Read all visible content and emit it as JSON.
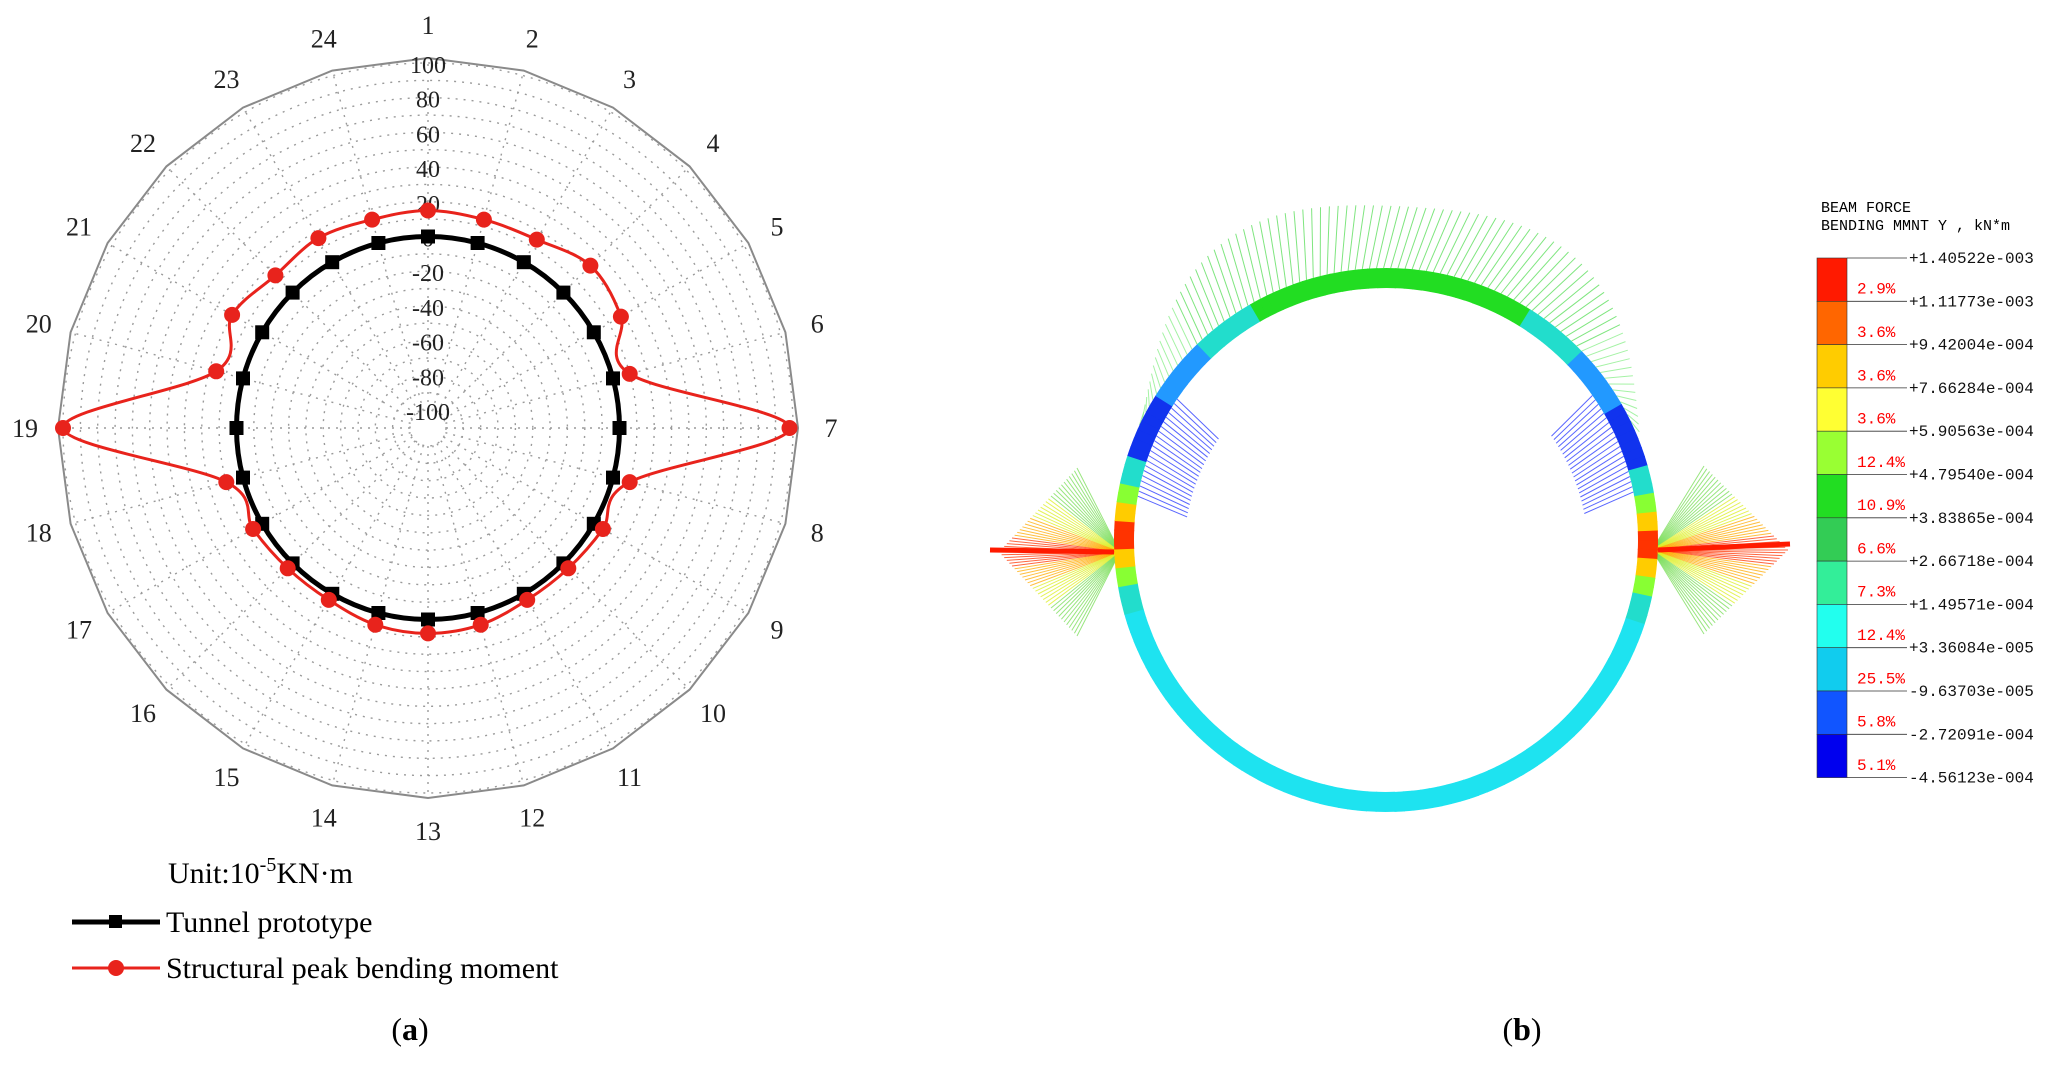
{
  "panel_a": {
    "label": "a",
    "unit_text": "Unit:10",
    "unit_exponent": "-5",
    "unit_suffix": "KN·m",
    "legend": [
      {
        "label": "Tunnel prototype",
        "color": "#000000",
        "marker": "square"
      },
      {
        "label": "Structural peak bending moment",
        "color": "#e8231c",
        "marker": "circle"
      }
    ]
  },
  "panel_b": {
    "label": "b",
    "legend_title_line1": "BEAM FORCE",
    "legend_title_line2": "BENDING MMNT Y , kN*m",
    "levels": [
      "+1.40522e-003",
      "+1.11773e-003",
      "+9.42004e-004",
      "+7.66284e-004",
      "+5.90563e-004",
      "+4.79540e-004",
      "+3.83865e-004",
      "+2.66718e-004",
      "+1.49571e-004",
      "+3.36084e-005",
      "-9.63703e-005",
      "-2.72091e-004",
      "-4.56123e-004"
    ],
    "bands": [
      {
        "percent": "2.9%",
        "color": "#ff1a00"
      },
      {
        "percent": "3.6%",
        "color": "#ff6600"
      },
      {
        "percent": "3.6%",
        "color": "#ffcc00"
      },
      {
        "percent": "3.6%",
        "color": "#ffff33"
      },
      {
        "percent": "12.4%",
        "color": "#99ff33"
      },
      {
        "percent": "10.9%",
        "color": "#22dd22"
      },
      {
        "percent": "6.6%",
        "color": "#33cc55"
      },
      {
        "percent": "7.3%",
        "color": "#33ee99"
      },
      {
        "percent": "12.4%",
        "color": "#22ffee"
      },
      {
        "percent": "25.5%",
        "color": "#11ccee"
      },
      {
        "percent": "5.8%",
        "color": "#1155ff"
      },
      {
        "percent": "5.1%",
        "color": "#0000ee"
      }
    ]
  },
  "chart_data": {
    "type": "radar",
    "categories": [
      "1",
      "2",
      "3",
      "4",
      "5",
      "6",
      "7",
      "8",
      "9",
      "10",
      "11",
      "12",
      "13",
      "14",
      "15",
      "16",
      "17",
      "18",
      "19",
      "20",
      "21",
      "22",
      "23",
      "24"
    ],
    "radial_ticks": [
      "100",
      "80",
      "60",
      "40",
      "20",
      "0",
      "-20",
      "-40",
      "-60",
      "-80",
      "-100"
    ],
    "rlim": [
      -100,
      100
    ],
    "grid": true,
    "series": [
      {
        "name": "Tunnel prototype",
        "color": "#000000",
        "marker": "square",
        "values": [
          0,
          0,
          0,
          0,
          0,
          0,
          0,
          0,
          0,
          0,
          0,
          0,
          0,
          0,
          0,
          0,
          0,
          0,
          0,
          0,
          0,
          0,
          0,
          0
        ]
      },
      {
        "name": "Structural peak bending moment",
        "color": "#e8231c",
        "marker": "circle",
        "values": [
          15,
          14,
          15,
          22,
          18,
          10,
          98,
          10,
          6,
          4,
          4,
          7,
          8,
          7,
          4,
          4,
          6,
          10,
          100,
          16,
          20,
          14,
          16,
          14
        ]
      }
    ]
  }
}
